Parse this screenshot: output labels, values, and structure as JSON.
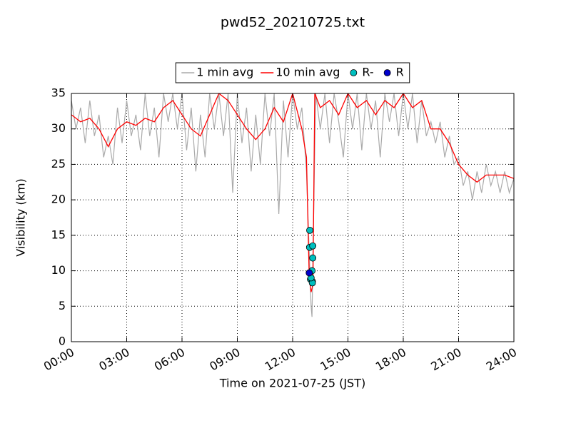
{
  "chart_data": {
    "type": "line",
    "title": "pwd52_20210725.txt",
    "x_label": "Time on 2021-07-25 (JST)",
    "y_label": "Visibility (km)",
    "xlim": [
      0,
      24
    ],
    "xticks": [
      {
        "value": 0,
        "label": "00:00"
      },
      {
        "value": 3,
        "label": "03:00"
      },
      {
        "value": 6,
        "label": "06:00"
      },
      {
        "value": 9,
        "label": "09:00"
      },
      {
        "value": 12,
        "label": "12:00"
      },
      {
        "value": 15,
        "label": "15:00"
      },
      {
        "value": 18,
        "label": "18:00"
      },
      {
        "value": 21,
        "label": "21:00"
      },
      {
        "value": 24,
        "label": "24:00"
      }
    ],
    "ylim": [
      0,
      35
    ],
    "yticks": [
      0,
      5,
      10,
      15,
      20,
      25,
      30,
      35
    ],
    "grid": true,
    "legend": "top",
    "series": [
      {
        "name": "1 min avg",
        "kind": "line",
        "color": "#aaaaaa",
        "x": [
          0,
          0.25,
          0.5,
          0.75,
          1,
          1.25,
          1.5,
          1.75,
          2,
          2.25,
          2.5,
          2.75,
          3,
          3.25,
          3.5,
          3.75,
          4,
          4.25,
          4.5,
          4.75,
          5,
          5.25,
          5.5,
          5.75,
          6,
          6.25,
          6.5,
          6.75,
          7,
          7.25,
          7.5,
          7.75,
          8,
          8.25,
          8.5,
          8.75,
          9,
          9.25,
          9.5,
          9.75,
          10,
          10.25,
          10.5,
          10.75,
          11,
          11.25,
          11.5,
          11.75,
          12,
          12.25,
          12.5,
          12.75,
          13,
          13.05,
          13.1,
          13.25,
          13.5,
          13.75,
          14,
          14.25,
          14.5,
          14.75,
          15,
          15.25,
          15.5,
          15.75,
          16,
          16.25,
          16.5,
          16.75,
          17,
          17.25,
          17.5,
          17.75,
          18,
          18.25,
          18.5,
          18.75,
          19,
          19.25,
          19.5,
          19.75,
          20,
          20.25,
          20.5,
          20.75,
          21,
          21.25,
          21.5,
          21.75,
          22,
          22.25,
          22.5,
          22.75,
          23,
          23.25,
          23.5,
          23.75,
          24
        ],
        "values": [
          34,
          30,
          33,
          28,
          34,
          29,
          32,
          26,
          29,
          25,
          33,
          28,
          34,
          29,
          32,
          27,
          35,
          29,
          33,
          26,
          35,
          31,
          35,
          30,
          35,
          27,
          33,
          24,
          32,
          26,
          35,
          30,
          35,
          29,
          35,
          21,
          35,
          28,
          33,
          24,
          32,
          25,
          35,
          29,
          35,
          18,
          34,
          26,
          35,
          30,
          33,
          24,
          5,
          3.5,
          12,
          35,
          30,
          35,
          28,
          35,
          31,
          26,
          35,
          30,
          35,
          27,
          35,
          30,
          34,
          26,
          35,
          31,
          35,
          29,
          35,
          30,
          35,
          28,
          34,
          29,
          31,
          28,
          31,
          26,
          29,
          25,
          26,
          22,
          24,
          20,
          24,
          21,
          25,
          22,
          24,
          21,
          24,
          21,
          23
        ]
      },
      {
        "name": "10 min avg",
        "kind": "line",
        "color": "#ff0000",
        "x": [
          0,
          0.5,
          1,
          1.5,
          2,
          2.5,
          3,
          3.5,
          4,
          4.5,
          5,
          5.5,
          6,
          6.5,
          7,
          7.5,
          8,
          8.5,
          9,
          9.5,
          10,
          10.5,
          11,
          11.5,
          12,
          12.5,
          12.75,
          12.9,
          13,
          13.1,
          13.2,
          13.5,
          14,
          14.5,
          15,
          15.5,
          16,
          16.5,
          17,
          17.5,
          18,
          18.5,
          19,
          19.5,
          20,
          20.5,
          21,
          21.5,
          22,
          22.5,
          23,
          23.5,
          24
        ],
        "values": [
          32,
          31,
          31.5,
          30,
          27.5,
          30,
          31,
          30.5,
          31.5,
          31,
          33,
          34,
          32,
          30,
          29,
          32,
          35,
          34,
          32,
          30,
          28.5,
          30,
          33,
          31,
          35,
          30,
          26,
          9,
          7,
          8,
          35,
          33,
          34,
          32,
          35,
          33,
          34,
          32,
          34,
          33,
          35,
          33,
          34,
          30,
          30,
          28,
          25,
          23.5,
          22.5,
          23.5,
          23.5,
          23.5,
          23
        ]
      },
      {
        "name": "R-",
        "kind": "scatter",
        "color": "#00bfbf",
        "x": [
          12.93,
          12.92,
          13.09,
          13.09,
          13.05,
          12.97,
          13.07,
          13.07,
          13.0
        ],
        "values": [
          15.7,
          13.3,
          13.5,
          11.8,
          10.0,
          8.8,
          8.5,
          8.3,
          9.0
        ]
      },
      {
        "name": "R",
        "kind": "scatter",
        "color": "#0000cc",
        "x": [
          12.9
        ],
        "values": [
          9.7
        ]
      }
    ]
  }
}
